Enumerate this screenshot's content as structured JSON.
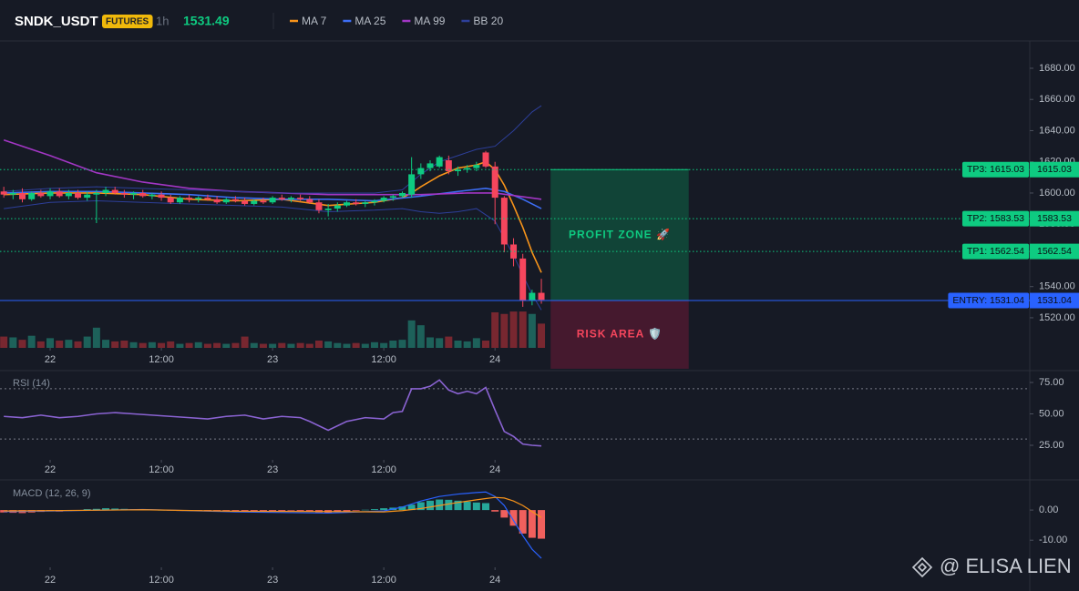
{
  "chart_data": [
    {
      "type": "candlestick",
      "title": "SNDK_USDT",
      "badge": "FUTURES",
      "interval": "1h",
      "last_price": 1531.49,
      "up_color": "#0ecb81",
      "down_color": "#f6465d",
      "x": [
        -5,
        -4,
        -3,
        -2,
        -1,
        0,
        1,
        2,
        3,
        4,
        5,
        6,
        7,
        8,
        9,
        10,
        11,
        12,
        13,
        14,
        15,
        16,
        17,
        18,
        19,
        20,
        21,
        22,
        23,
        24,
        25,
        26,
        27,
        28,
        29,
        30,
        31,
        32,
        33,
        34,
        35,
        36,
        37,
        38,
        39,
        40,
        41,
        42,
        43,
        44,
        45,
        46,
        47,
        48,
        49,
        50,
        51,
        52,
        53
      ],
      "open": [
        1601,
        1599,
        1600,
        1596,
        1600,
        1598,
        1601,
        1598,
        1600,
        1597,
        1599,
        1600,
        1602,
        1600,
        1599,
        1600,
        1598,
        1599,
        1597,
        1594,
        1597,
        1596,
        1597,
        1596,
        1594,
        1596,
        1595,
        1593,
        1595,
        1594,
        1597,
        1596,
        1597,
        1596,
        1594,
        1589,
        1590,
        1592,
        1594,
        1593,
        1594,
        1595,
        1597,
        1598,
        1599,
        1612,
        1616,
        1617,
        1621,
        1614,
        1615,
        1616,
        1626,
        1617,
        1597,
        1567,
        1558,
        1531,
        1536
      ],
      "high": [
        1604,
        1602,
        1603,
        1601,
        1602,
        1603,
        1603,
        1602,
        1602,
        1601,
        1602,
        1604,
        1604,
        1602,
        1601,
        1602,
        1600,
        1601,
        1599,
        1598,
        1599,
        1598,
        1599,
        1598,
        1597,
        1598,
        1597,
        1596,
        1597,
        1598,
        1599,
        1598,
        1599,
        1598,
        1596,
        1593,
        1594,
        1595,
        1596,
        1595,
        1596,
        1598,
        1599,
        1601,
        1623,
        1619,
        1621,
        1624,
        1624,
        1617,
        1618,
        1620,
        1627,
        1620,
        1598,
        1571,
        1561,
        1538,
        1545
      ],
      "low": [
        1597,
        1596,
        1594,
        1595,
        1597,
        1596,
        1597,
        1596,
        1596,
        1595,
        1580.7,
        1598,
        1599,
        1597,
        1596,
        1597,
        1596,
        1595,
        1593,
        1593,
        1594,
        1594,
        1595,
        1593,
        1593,
        1594,
        1592,
        1592,
        1593,
        1593,
        1595,
        1594,
        1595,
        1593,
        1587,
        1585,
        1588,
        1591,
        1592,
        1591,
        1592,
        1594,
        1595,
        1597,
        1597,
        1609,
        1614,
        1616,
        1612,
        1611,
        1613,
        1614,
        1616,
        1580,
        1562,
        1553,
        1527,
        1528,
        1529
      ],
      "close": [
        1599,
        1600,
        1596,
        1600,
        1598,
        1601,
        1598,
        1600,
        1597,
        1599,
        1600,
        1602,
        1600,
        1599,
        1600,
        1598,
        1599,
        1597,
        1594,
        1597,
        1596,
        1597,
        1596,
        1594,
        1596,
        1595,
        1593,
        1595,
        1594,
        1597,
        1596,
        1597,
        1596,
        1594,
        1589,
        1590,
        1592,
        1594,
        1593,
        1594,
        1595,
        1597,
        1598,
        1600,
        1612,
        1616,
        1619,
        1623,
        1614,
        1615,
        1616,
        1618,
        1617,
        1597,
        1567,
        1558,
        1531,
        1536,
        1531.49
      ],
      "volume": [
        14,
        13,
        10,
        15,
        8,
        12,
        9,
        10,
        8,
        14,
        25,
        10,
        8,
        9,
        7,
        6,
        7,
        6,
        8,
        5,
        6,
        7,
        5,
        6,
        5,
        6,
        14,
        6,
        5,
        5,
        6,
        5,
        6,
        5,
        9,
        8,
        6,
        5,
        6,
        5,
        7,
        6,
        9,
        10,
        34,
        28,
        13,
        12,
        14,
        9,
        8,
        12,
        9,
        44,
        42,
        45,
        45,
        42,
        30
      ],
      "volume_ylim": [
        0,
        380
      ],
      "xlim": [
        -5.41,
        105.7
      ],
      "xticks": [
        {
          "value": 0,
          "label": "22"
        },
        {
          "value": 12,
          "label": "12:00"
        },
        {
          "value": 24,
          "label": "23"
        },
        {
          "value": 36,
          "label": "12:00"
        },
        {
          "value": 48,
          "label": "24"
        }
      ],
      "ylim": [
        1500.7,
        1697.5
      ],
      "yticks": [
        {
          "value": 1520,
          "label": "1520.00"
        },
        {
          "value": 1540,
          "label": "1540.00"
        },
        {
          "value": 1560,
          "label": "1560.00"
        },
        {
          "value": 1580,
          "label": "1580.00"
        },
        {
          "value": 1600,
          "label": "1600.00"
        },
        {
          "value": 1620,
          "label": "1620.00"
        },
        {
          "value": 1640,
          "label": "1640.00"
        },
        {
          "value": 1660,
          "label": "1660.00"
        },
        {
          "value": 1680,
          "label": "1680.00"
        }
      ],
      "overlays": [
        {
          "name": "MA 7",
          "color": "#f7931a",
          "x": [
            -5,
            0,
            5,
            10,
            15,
            20,
            25,
            30,
            35,
            38,
            39,
            40,
            42,
            44,
            46,
            47,
            48,
            49,
            50,
            51,
            52,
            53
          ],
          "values": [
            1599,
            1600,
            1600,
            1599,
            1596,
            1595,
            1596,
            1592,
            1594,
            1597,
            1600,
            1604,
            1611,
            1616,
            1618,
            1620,
            1615,
            1605,
            1592,
            1578,
            1562,
            1549
          ]
        },
        {
          "name": "MA 25",
          "color": "#3d6ef5",
          "x": [
            -5,
            0,
            5,
            10,
            15,
            20,
            25,
            30,
            35,
            40,
            44,
            47,
            49,
            51,
            53
          ],
          "values": [
            1600,
            1601,
            1601,
            1600,
            1599,
            1597,
            1596,
            1596,
            1595,
            1598,
            1601,
            1603,
            1601,
            1596,
            1590
          ]
        },
        {
          "name": "MA 99",
          "color": "#a236c4",
          "x": [
            -5,
            0,
            5,
            10,
            15,
            20,
            25,
            30,
            35,
            40,
            45,
            48,
            53
          ],
          "values": [
            1634,
            1624,
            1613,
            1607,
            1603,
            1601,
            1600,
            1599,
            1599,
            1599,
            1600,
            1600,
            1596
          ]
        },
        {
          "name": "BB 20",
          "color": "#2d3f9a",
          "x": [
            -5,
            0,
            5,
            10,
            15,
            20,
            25,
            30,
            35,
            38,
            40,
            42,
            44,
            46,
            48,
            50,
            52,
            53
          ],
          "values": [
            1601,
            1603,
            1604,
            1603,
            1602,
            1601,
            1600,
            1600,
            1600,
            1602,
            1612,
            1620,
            1624,
            1628,
            1630,
            1640,
            1652,
            1656
          ],
          "lower": [
            1590,
            1594,
            1595,
            1594,
            1593,
            1592,
            1591,
            1588,
            1589,
            1590,
            1588,
            1587,
            1588,
            1590,
            1582,
            1560,
            1535,
            1525
          ]
        }
      ],
      "levels": [
        {
          "value": 1615.03,
          "label": "TP3: 1615.03",
          "color": "#0ecb81",
          "style": "dotted"
        },
        {
          "value": 1583.53,
          "label": "TP2: 1583.53",
          "color": "#0ecb81",
          "style": "dotted"
        },
        {
          "value": 1562.54,
          "label": "TP1: 1562.54",
          "color": "#0ecb81",
          "style": "dotted"
        },
        {
          "value": 1531.04,
          "label": "ENTRY: 1531.04",
          "color": "#2962ff",
          "style": "solid"
        }
      ],
      "zones": [
        {
          "label": "PROFIT ZONE 🚀",
          "from": 1531.04,
          "to": 1615.03,
          "x": [
            54,
            68.9
          ],
          "color": "#0ecb81",
          "fill": "#11493a"
        },
        {
          "label": "RISK AREA 🛡️",
          "from": 1487.3,
          "to": 1531.04,
          "x": [
            54,
            68.9
          ],
          "color": "#f6465d",
          "fill": "#4a1a30"
        }
      ]
    },
    {
      "type": "line",
      "title": "RSI (14)",
      "color": "#8a63d2",
      "x": [
        -5,
        -3,
        -1,
        1,
        3,
        5,
        7,
        9,
        11,
        13,
        15,
        17,
        19,
        21,
        23,
        25,
        27,
        28,
        30,
        32,
        34,
        36,
        37,
        38,
        39,
        40,
        41,
        42,
        43,
        44,
        45,
        46,
        47,
        48,
        49,
        50,
        51,
        52,
        53
      ],
      "values": [
        48,
        47,
        49,
        47,
        48,
        50,
        51,
        50,
        49,
        48,
        47,
        46,
        48,
        49,
        46,
        48,
        47,
        44,
        37,
        44,
        47,
        46,
        51,
        52,
        70,
        70,
        72,
        77,
        69,
        66,
        68,
        66,
        71,
        53,
        36,
        32,
        26,
        25,
        24.5
      ],
      "guides": [
        30,
        70
      ],
      "xlim": [
        -5.41,
        105.7
      ],
      "xticks": [
        {
          "value": 0,
          "label": "22"
        },
        {
          "value": 12,
          "label": "12:00"
        },
        {
          "value": 24,
          "label": "23"
        },
        {
          "value": 36,
          "label": "12:00"
        },
        {
          "value": 48,
          "label": "24"
        }
      ],
      "ylim": [
        13.4,
        83.7
      ],
      "yticks": [
        {
          "value": 25,
          "label": "25.00"
        },
        {
          "value": 50,
          "label": "50.00"
        },
        {
          "value": 75,
          "label": "75.00"
        }
      ]
    },
    {
      "type": "macd",
      "title": "MACD (12, 26, 9)",
      "x": [
        -5,
        -4,
        -3,
        -2,
        -1,
        0,
        1,
        2,
        3,
        4,
        5,
        6,
        7,
        8,
        9,
        10,
        11,
        12,
        13,
        14,
        15,
        16,
        17,
        18,
        19,
        20,
        21,
        22,
        23,
        24,
        25,
        26,
        27,
        28,
        29,
        30,
        31,
        32,
        33,
        34,
        35,
        36,
        37,
        38,
        39,
        40,
        41,
        42,
        43,
        44,
        45,
        46,
        47,
        48,
        49,
        50,
        51,
        52,
        53
      ],
      "histogram": [
        -0.8,
        -0.9,
        -1,
        -0.8,
        -0.6,
        -0.4,
        -0.5,
        -0.3,
        -0.2,
        0.3,
        0.4,
        0.6,
        0.5,
        0.4,
        0.3,
        0.2,
        0.1,
        0,
        -0.2,
        -0.3,
        -0.2,
        -0.3,
        -0.4,
        -0.5,
        -0.4,
        -0.6,
        -0.7,
        -0.5,
        -0.6,
        -0.4,
        -0.3,
        -0.2,
        -0.3,
        -0.5,
        -0.8,
        -0.9,
        -0.6,
        -0.4,
        -0.2,
        0.1,
        0.3,
        0.6,
        0.8,
        1.2,
        1.8,
        2.6,
        3.1,
        3.5,
        3.4,
        3.1,
        2.8,
        2.5,
        2.3,
        -0.5,
        -2.5,
        -5.2,
        -7.8,
        -9.2,
        -9.5
      ],
      "up_color": "#26a69a",
      "down_color": "#f0605d",
      "line_x": [
        -5,
        0,
        10,
        20,
        30,
        36,
        38,
        40,
        42,
        44,
        46,
        47,
        48,
        49,
        50,
        51,
        52,
        53
      ],
      "macd": [
        -0.5,
        -0.3,
        0.2,
        -0.6,
        -1,
        -0.3,
        1,
        3,
        4.5,
        5.3,
        5.8,
        6,
        4.5,
        1.5,
        -3.5,
        -8.5,
        -13,
        -16
      ],
      "signal": [
        -0.3,
        -0.2,
        0.1,
        -0.4,
        -0.5,
        -0.6,
        -0.2,
        0.5,
        1.5,
        2.5,
        3.4,
        3.8,
        4.2,
        4,
        3,
        1.5,
        -0.5,
        -2.5
      ],
      "macd_color": "#2962ff",
      "signal_color": "#f7931a",
      "xlim": [
        -5.41,
        105.7
      ],
      "xticks": [
        {
          "value": 0,
          "label": "22"
        },
        {
          "value": 12,
          "label": "12:00"
        },
        {
          "value": 24,
          "label": "23"
        },
        {
          "value": 36,
          "label": "12:00"
        },
        {
          "value": 48,
          "label": "24"
        }
      ],
      "ylim": [
        -19,
        9.7
      ],
      "yticks": [
        {
          "value": -10,
          "label": "-10.00"
        },
        {
          "value": 0,
          "label": "0.00"
        }
      ]
    }
  ],
  "watermark": "@ ELISA LIEN"
}
